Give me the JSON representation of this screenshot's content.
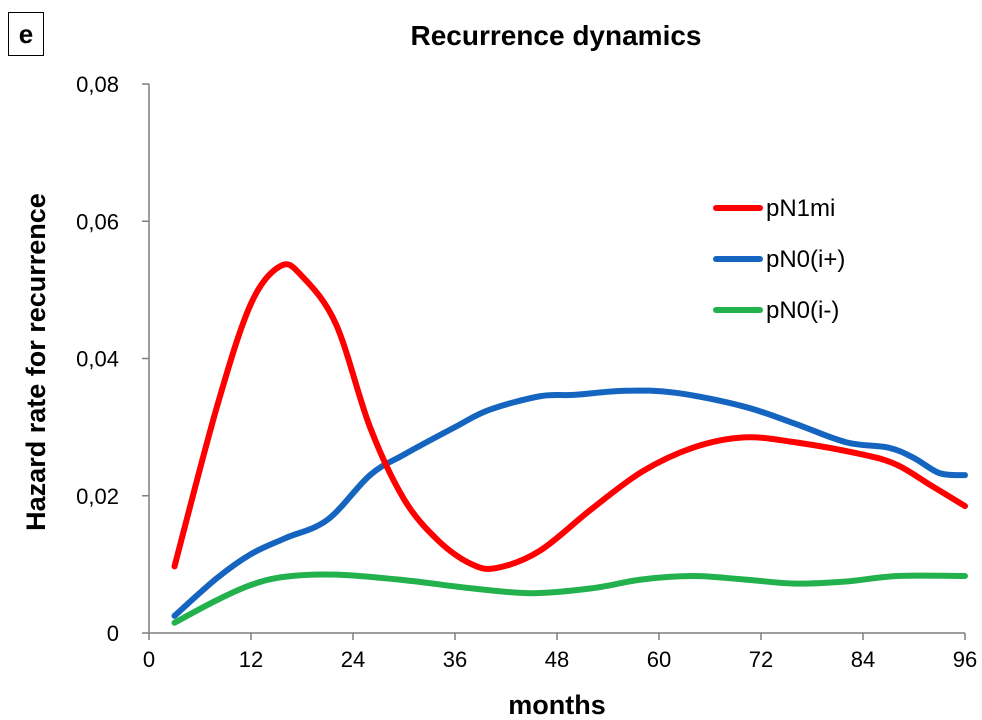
{
  "panel_label": "e",
  "chart_data": {
    "type": "line",
    "title": "Recurrence dynamics",
    "xlabel": "months",
    "ylabel": "Hazard rate for recurrence",
    "xlim": [
      0,
      96
    ],
    "ylim": [
      0,
      0.08
    ],
    "x_ticks": [
      "0",
      "12",
      "24",
      "36",
      "48",
      "60",
      "72",
      "84",
      "96"
    ],
    "y_ticks": [
      "0",
      "0,02",
      "0,04",
      "0,06",
      "0,08"
    ],
    "legend_position": "right",
    "grid": false,
    "series": [
      {
        "name": "pN1mi",
        "color": "#ff0000",
        "points": [
          [
            3,
            0.0097
          ],
          [
            8,
            0.033
          ],
          [
            12,
            0.048
          ],
          [
            15.5,
            0.0535
          ],
          [
            18,
            0.052
          ],
          [
            22,
            0.045
          ],
          [
            26,
            0.03
          ],
          [
            30,
            0.0195
          ],
          [
            34,
            0.0135
          ],
          [
            38,
            0.01
          ],
          [
            41,
            0.0095
          ],
          [
            46,
            0.012
          ],
          [
            52,
            0.018
          ],
          [
            58,
            0.0235
          ],
          [
            64,
            0.027
          ],
          [
            70,
            0.0285
          ],
          [
            76,
            0.0278
          ],
          [
            84,
            0.026
          ],
          [
            88,
            0.0245
          ],
          [
            92,
            0.0215
          ],
          [
            96,
            0.0185
          ]
        ]
      },
      {
        "name": "pN0(i+)",
        "color": "#1565c0",
        "points": [
          [
            3,
            0.0025
          ],
          [
            8,
            0.008
          ],
          [
            12,
            0.0115
          ],
          [
            16,
            0.0138
          ],
          [
            21,
            0.0165
          ],
          [
            26,
            0.023
          ],
          [
            30,
            0.026
          ],
          [
            36,
            0.03
          ],
          [
            40,
            0.0325
          ],
          [
            46,
            0.0345
          ],
          [
            50,
            0.0347
          ],
          [
            56,
            0.0353
          ],
          [
            62,
            0.035
          ],
          [
            70,
            0.033
          ],
          [
            76,
            0.0305
          ],
          [
            82,
            0.0278
          ],
          [
            87,
            0.027
          ],
          [
            90,
            0.0255
          ],
          [
            93,
            0.0233
          ],
          [
            96,
            0.023
          ]
        ]
      },
      {
        "name": "pN0(i-)",
        "color": "#22b14c",
        "points": [
          [
            3,
            0.0015
          ],
          [
            8,
            0.0048
          ],
          [
            12,
            0.007
          ],
          [
            16,
            0.0082
          ],
          [
            22,
            0.0085
          ],
          [
            30,
            0.0077
          ],
          [
            38,
            0.0065
          ],
          [
            45,
            0.0058
          ],
          [
            52,
            0.0065
          ],
          [
            58,
            0.0078
          ],
          [
            64,
            0.0083
          ],
          [
            70,
            0.0078
          ],
          [
            76,
            0.0072
          ],
          [
            82,
            0.0075
          ],
          [
            88,
            0.0083
          ],
          [
            96,
            0.0083
          ]
        ]
      }
    ]
  }
}
